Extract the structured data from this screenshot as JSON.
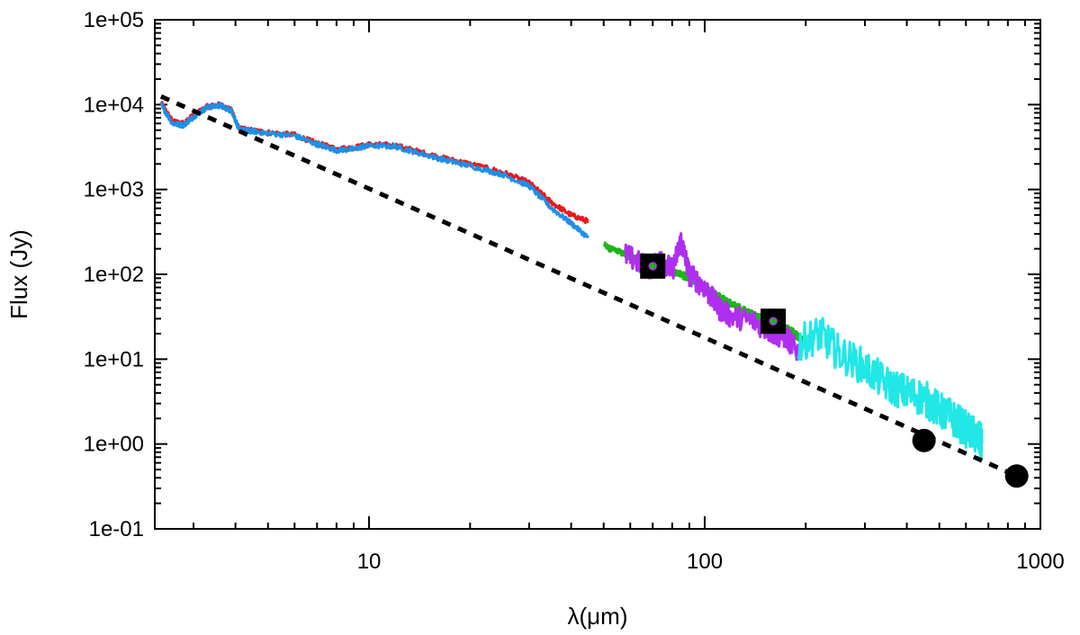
{
  "chart_data": {
    "type": "line",
    "xlabel": "λ(μm)",
    "ylabel": "Flux (Jy)",
    "x_scale": "log",
    "y_scale": "log",
    "xlim": [
      2.3,
      1000
    ],
    "ylim": [
      0.1,
      100000
    ],
    "x_ticks": [
      10,
      100,
      1000
    ],
    "x_tick_labels": [
      "10",
      "100",
      "1000"
    ],
    "y_ticks": [
      0.1,
      1,
      10,
      100,
      1000,
      10000,
      100000
    ],
    "y_tick_labels": [
      "1e-01",
      "1e+00",
      "1e+01",
      "1e+02",
      "1e+03",
      "1e+04",
      "1e+05"
    ],
    "grid": false,
    "legend": "none",
    "series": [
      {
        "color": "#e8191b",
        "style": "noisy-line",
        "x": [
          2.4,
          2.6,
          2.8,
          3.0,
          3.3,
          3.6,
          3.9,
          4.1,
          4.4,
          5.0,
          6.0,
          7.0,
          8.0,
          9.0,
          10.0,
          12.0,
          14.0,
          17.0,
          20.0,
          25.0,
          30.0,
          35.0,
          40.0,
          45.0
        ],
        "y": [
          10500,
          6300,
          6000,
          7500,
          9500,
          10000,
          8500,
          5200,
          5000,
          4700,
          4400,
          3500,
          3000,
          3100,
          3400,
          3300,
          2800,
          2300,
          2000,
          1600,
          1200,
          700,
          500,
          420
        ]
      },
      {
        "color": "#1f8fe6",
        "style": "noisy-line",
        "x": [
          2.4,
          2.6,
          2.8,
          3.0,
          3.3,
          3.6,
          3.9,
          4.1,
          4.4,
          5.0,
          6.0,
          7.0,
          8.0,
          9.0,
          10.0,
          12.0,
          14.0,
          17.0,
          20.0,
          25.0,
          30.0,
          35.0,
          40.0,
          45.0
        ],
        "y": [
          10000,
          6000,
          5700,
          7200,
          9300,
          9800,
          8400,
          5100,
          4900,
          4600,
          4300,
          3400,
          2900,
          3000,
          3300,
          3200,
          2700,
          2200,
          1900,
          1500,
          1100,
          600,
          400,
          270
        ]
      },
      {
        "color": "#1fb51c",
        "style": "noisy-line",
        "x": [
          50,
          60,
          70,
          80,
          90,
          100,
          120,
          140,
          160,
          180,
          195
        ],
        "y": [
          220,
          160,
          130,
          110,
          90,
          70,
          45,
          33,
          26,
          22,
          17
        ]
      },
      {
        "color": "#b02ef0",
        "style": "noisy-line",
        "x": [
          58,
          65,
          70,
          75,
          80,
          85,
          90,
          100,
          110,
          120,
          140,
          160,
          175,
          190
        ],
        "y": [
          170,
          130,
          120,
          150,
          110,
          250,
          100,
          70,
          40,
          32,
          28,
          20,
          18,
          12
        ]
      },
      {
        "color": "#22e7e7",
        "style": "noisy-line",
        "x": [
          190,
          220,
          250,
          300,
          350,
          400,
          450,
          500,
          550,
          600,
          650,
          670
        ],
        "y": [
          15,
          20,
          12,
          8,
          5,
          4,
          3.5,
          2.5,
          2.0,
          1.5,
          1.2,
          1.0
        ]
      },
      {
        "color": "#000000",
        "style": "dashed",
        "x": [
          2.4,
          850
        ],
        "y": [
          12500,
          0.42
        ]
      },
      {
        "color": "#000000",
        "style": "square-markers",
        "x": [
          70,
          160
        ],
        "y": [
          125,
          28
        ]
      },
      {
        "color": "#000000",
        "style": "circle-markers",
        "x": [
          450,
          850
        ],
        "y": [
          1.1,
          0.42
        ]
      }
    ]
  }
}
